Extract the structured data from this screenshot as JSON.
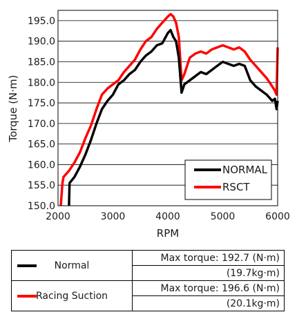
{
  "chart_data": {
    "type": "line",
    "xlabel": "RPM",
    "ylabel": "Torque (N·m)",
    "xlim": [
      2000,
      6000
    ],
    "ylim": [
      150,
      197.5
    ],
    "xticks": [
      "2000",
      "3000",
      "4000",
      "5000",
      "6000"
    ],
    "yticks": [
      "150.0",
      "155.0",
      "160.0",
      "165.0",
      "170.0",
      "175.0",
      "180.0",
      "185.0",
      "190.0",
      "195.0"
    ],
    "grid": "horizontal",
    "legend_position": "bottom-right",
    "series": [
      {
        "name": "NORMAL",
        "color": "#000000",
        "x": [
          2200,
          2210,
          2300,
          2400,
          2500,
          2600,
          2700,
          2800,
          2900,
          3000,
          3100,
          3200,
          3300,
          3400,
          3500,
          3600,
          3700,
          3800,
          3900,
          4000,
          4050,
          4100,
          4150,
          4200,
          4250,
          4300,
          4350,
          4400,
          4500,
          4600,
          4700,
          4800,
          4900,
          5000,
          5100,
          5200,
          5300,
          5400,
          5500,
          5600,
          5700,
          5800,
          5900,
          5950,
          5980,
          6000
        ],
        "y": [
          150.0,
          155.5,
          157.0,
          159.5,
          162.5,
          166.0,
          170.0,
          173.5,
          175.5,
          177.0,
          179.5,
          180.5,
          182.0,
          183.0,
          185.0,
          186.5,
          187.5,
          189.0,
          189.5,
          192.0,
          192.7,
          191.0,
          190.0,
          186.0,
          177.5,
          179.5,
          180.0,
          180.5,
          181.5,
          182.5,
          182.0,
          183.0,
          184.0,
          185.0,
          184.5,
          184.0,
          184.5,
          184.0,
          180.5,
          179.0,
          178.0,
          177.0,
          175.5,
          176.0,
          173.5,
          175.5
        ]
      },
      {
        "name": "RSCT",
        "color": "#ff0000",
        "x": [
          2050,
          2080,
          2100,
          2200,
          2300,
          2400,
          2500,
          2600,
          2700,
          2800,
          2900,
          3000,
          3100,
          3200,
          3300,
          3400,
          3500,
          3600,
          3700,
          3800,
          3900,
          4000,
          4050,
          4100,
          4150,
          4200,
          4250,
          4300,
          4350,
          4400,
          4500,
          4600,
          4700,
          4800,
          4900,
          5000,
          5100,
          5200,
          5300,
          5400,
          5500,
          5600,
          5700,
          5800,
          5900,
          5950,
          5980,
          6000
        ],
        "y": [
          150.0,
          155.5,
          157.0,
          158.5,
          160.5,
          163.0,
          166.5,
          169.5,
          173.5,
          177.0,
          178.5,
          179.5,
          180.5,
          182.5,
          184.0,
          185.5,
          188.0,
          190.0,
          191.0,
          193.0,
          194.5,
          196.0,
          196.6,
          196.0,
          194.5,
          191.0,
          180.5,
          182.0,
          184.0,
          186.0,
          187.0,
          187.5,
          187.0,
          188.0,
          188.5,
          189.0,
          188.5,
          188.0,
          188.5,
          187.5,
          185.5,
          184.0,
          182.5,
          181.0,
          179.0,
          178.0,
          177.0,
          188.5
        ]
      }
    ]
  },
  "summary_table": {
    "rows": [
      {
        "swatch_color": "#000000",
        "label": "Normal",
        "max_torque": "Max torque: 192.7 (N·m)",
        "kg_value": "(19.7kg·m)"
      },
      {
        "swatch_color": "#ff0000",
        "label": "Racing Suction",
        "max_torque": "Max torque: 196.6 (N·m)",
        "kg_value": "(20.1kg·m)"
      }
    ]
  }
}
